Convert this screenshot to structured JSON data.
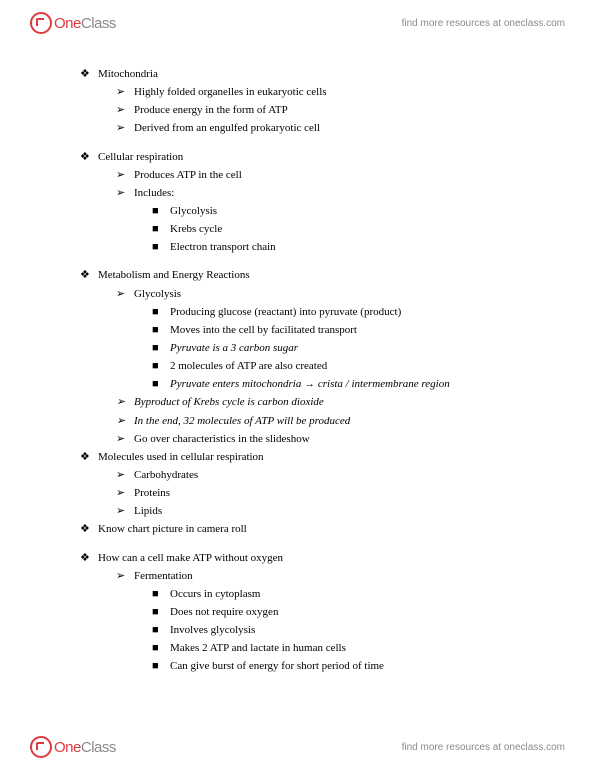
{
  "brand": {
    "one": "One",
    "class": "Class"
  },
  "resource_link": "find more resources at oneclass.com",
  "bullets": {
    "diamond": "❖",
    "arrow": "➢",
    "square": "■"
  },
  "notes": {
    "s1": {
      "title": "Mitochondria",
      "items": [
        "Highly folded organelles in eukaryotic cells",
        "Produce energy in the form of ATP",
        "Derived from an engulfed prokaryotic cell"
      ]
    },
    "s2": {
      "title": "Cellular respiration",
      "sub1": "Produces ATP in the cell",
      "sub2": "Includes:",
      "items": [
        "Glycolysis",
        "Krebs cycle",
        "Electron transport chain"
      ]
    },
    "s3": {
      "title": "Metabolism and Energy Reactions",
      "sub": "Glycolysis",
      "items": [
        "Producing glucose (reactant) into pyruvate (product)",
        "Moves into the cell by facilitated transport",
        "Pyruvate is a 3 carbon sugar",
        "2 molecules of ATP are also created",
        "Pyruvate enters mitochondria → crista / intermembrane region"
      ],
      "sub_after": [
        "Byproduct of Krebs cycle is carbon dioxide",
        "In the end, 32 molecules of ATP will be produced",
        "Go over characteristics in the slideshow"
      ]
    },
    "s4": {
      "title": "Molecules used in cellular respiration",
      "items": [
        "Carbohydrates",
        "Proteins",
        "Lipids"
      ]
    },
    "s5": {
      "title": "Know chart picture in camera roll"
    },
    "s6": {
      "title": "How can a cell make ATP without oxygen",
      "sub": "Fermentation",
      "items": [
        "Occurs in cytoplasm",
        "Does not require oxygen",
        "Involves glycolysis",
        "Makes 2 ATP and lactate in human cells",
        "Can give burst of energy for short period of time"
      ]
    }
  }
}
